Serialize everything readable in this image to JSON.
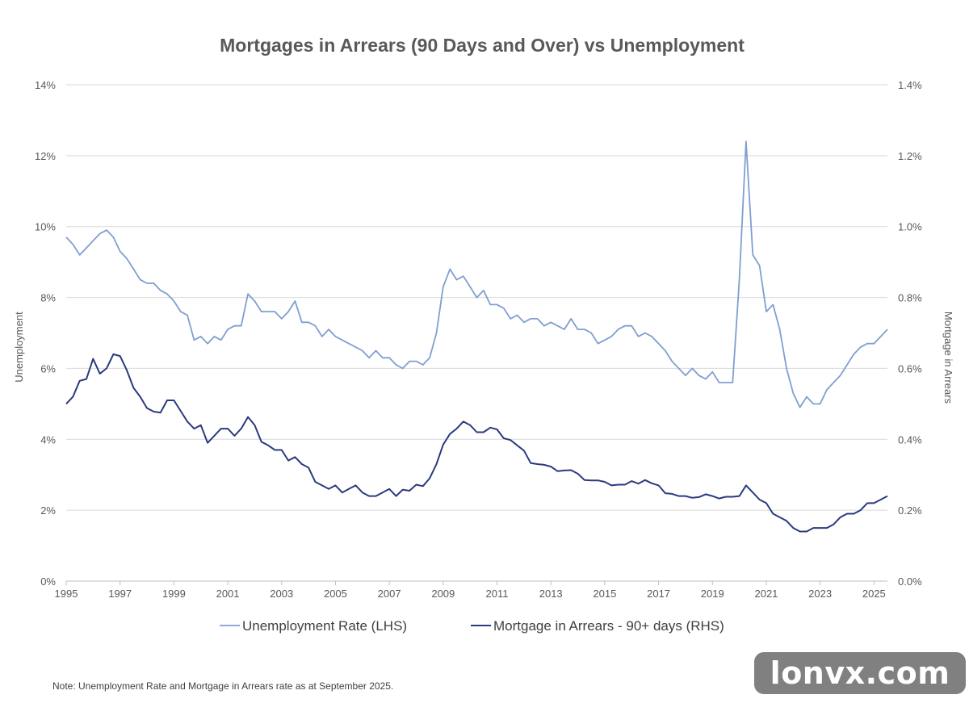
{
  "chart_data": {
    "type": "line",
    "title": "Mortgages in Arrears (90 Days and Over) vs Unemployment",
    "ylabel_left": "Unemployment",
    "ylabel_right": "Mortgage in Arrears",
    "ylim_left": [
      0,
      14
    ],
    "ylim_right": [
      0,
      1.4
    ],
    "xlim": [
      1995,
      2025.5
    ],
    "left_ticks": [
      "0%",
      "2%",
      "4%",
      "6%",
      "8%",
      "10%",
      "12%",
      "14%"
    ],
    "right_ticks": [
      "0.0%",
      "0.2%",
      "0.4%",
      "0.6%",
      "0.8%",
      "1.0%",
      "1.2%",
      "1.4%"
    ],
    "x_ticks": [
      "1995",
      "1997",
      "1999",
      "2001",
      "2003",
      "2005",
      "2007",
      "2009",
      "2011",
      "2013",
      "2015",
      "2017",
      "2019",
      "2021",
      "2023",
      "2025"
    ],
    "grid": true,
    "legend_position": "bottom",
    "series": [
      {
        "name": "Unemployment Rate (LHS)",
        "axis": "left",
        "color": "#7f9fd1",
        "points": [
          [
            1995,
            9.7
          ],
          [
            1995.25,
            9.5
          ],
          [
            1995.5,
            9.2
          ],
          [
            1995.75,
            9.4
          ],
          [
            1996,
            9.6
          ],
          [
            1996.25,
            9.8
          ],
          [
            1996.5,
            9.9
          ],
          [
            1996.75,
            9.7
          ],
          [
            1997,
            9.3
          ],
          [
            1997.25,
            9.1
          ],
          [
            1997.5,
            8.8
          ],
          [
            1997.75,
            8.5
          ],
          [
            1998,
            8.4
          ],
          [
            1998.25,
            8.4
          ],
          [
            1998.5,
            8.2
          ],
          [
            1998.75,
            8.1
          ],
          [
            1999,
            7.9
          ],
          [
            1999.25,
            7.6
          ],
          [
            1999.5,
            7.5
          ],
          [
            1999.75,
            6.8
          ],
          [
            2000,
            6.9
          ],
          [
            2000.25,
            6.7
          ],
          [
            2000.5,
            6.9
          ],
          [
            2000.75,
            6.8
          ],
          [
            2001,
            7.1
          ],
          [
            2001.25,
            7.2
          ],
          [
            2001.5,
            7.2
          ],
          [
            2001.75,
            8.1
          ],
          [
            2002,
            7.9
          ],
          [
            2002.25,
            7.6
          ],
          [
            2002.5,
            7.6
          ],
          [
            2002.75,
            7.6
          ],
          [
            2003,
            7.4
          ],
          [
            2003.25,
            7.6
          ],
          [
            2003.5,
            7.9
          ],
          [
            2003.75,
            7.3
          ],
          [
            2004,
            7.3
          ],
          [
            2004.25,
            7.2
          ],
          [
            2004.5,
            6.9
          ],
          [
            2004.75,
            7.1
          ],
          [
            2005,
            6.9
          ],
          [
            2005.25,
            6.8
          ],
          [
            2005.5,
            6.7
          ],
          [
            2005.75,
            6.6
          ],
          [
            2006,
            6.5
          ],
          [
            2006.25,
            6.3
          ],
          [
            2006.5,
            6.5
          ],
          [
            2006.75,
            6.3
          ],
          [
            2007,
            6.3
          ],
          [
            2007.25,
            6.1
          ],
          [
            2007.5,
            6.0
          ],
          [
            2007.75,
            6.2
          ],
          [
            2008,
            6.2
          ],
          [
            2008.25,
            6.1
          ],
          [
            2008.5,
            6.3
          ],
          [
            2008.75,
            7.0
          ],
          [
            2009,
            8.3
          ],
          [
            2009.25,
            8.8
          ],
          [
            2009.5,
            8.5
          ],
          [
            2009.75,
            8.6
          ],
          [
            2010,
            8.3
          ],
          [
            2010.25,
            8.0
          ],
          [
            2010.5,
            8.2
          ],
          [
            2010.75,
            7.8
          ],
          [
            2011,
            7.8
          ],
          [
            2011.25,
            7.7
          ],
          [
            2011.5,
            7.4
          ],
          [
            2011.75,
            7.5
          ],
          [
            2012,
            7.3
          ],
          [
            2012.25,
            7.4
          ],
          [
            2012.5,
            7.4
          ],
          [
            2012.75,
            7.2
          ],
          [
            2013,
            7.3
          ],
          [
            2013.25,
            7.2
          ],
          [
            2013.5,
            7.1
          ],
          [
            2013.75,
            7.4
          ],
          [
            2014,
            7.1
          ],
          [
            2014.25,
            7.1
          ],
          [
            2014.5,
            7.0
          ],
          [
            2014.75,
            6.7
          ],
          [
            2015,
            6.8
          ],
          [
            2015.25,
            6.9
          ],
          [
            2015.5,
            7.1
          ],
          [
            2015.75,
            7.2
          ],
          [
            2016,
            7.2
          ],
          [
            2016.25,
            6.9
          ],
          [
            2016.5,
            7.0
          ],
          [
            2016.75,
            6.9
          ],
          [
            2017,
            6.7
          ],
          [
            2017.25,
            6.5
          ],
          [
            2017.5,
            6.2
          ],
          [
            2017.75,
            6.0
          ],
          [
            2018,
            5.8
          ],
          [
            2018.25,
            6.0
          ],
          [
            2018.5,
            5.8
          ],
          [
            2018.75,
            5.7
          ],
          [
            2019,
            5.9
          ],
          [
            2019.25,
            5.6
          ],
          [
            2019.5,
            5.6
          ],
          [
            2019.75,
            5.6
          ],
          [
            2020,
            8.5
          ],
          [
            2020.25,
            12.4
          ],
          [
            2020.5,
            9.2
          ],
          [
            2020.75,
            8.9
          ],
          [
            2021,
            7.6
          ],
          [
            2021.25,
            7.8
          ],
          [
            2021.5,
            7.1
          ],
          [
            2021.75,
            6.0
          ],
          [
            2022,
            5.3
          ],
          [
            2022.25,
            4.9
          ],
          [
            2022.5,
            5.2
          ],
          [
            2022.75,
            5.0
          ],
          [
            2023,
            5.0
          ],
          [
            2023.25,
            5.4
          ],
          [
            2023.5,
            5.6
          ],
          [
            2023.75,
            5.8
          ],
          [
            2024,
            6.1
          ],
          [
            2024.25,
            6.4
          ],
          [
            2024.5,
            6.6
          ],
          [
            2024.75,
            6.7
          ],
          [
            2025,
            6.7
          ],
          [
            2025.25,
            6.9
          ],
          [
            2025.5,
            7.1
          ]
        ]
      },
      {
        "name": "Mortgage in Arrears - 90+ days (RHS)",
        "axis": "right",
        "color": "#2b3a7d",
        "points": [
          [
            1995,
            0.5
          ],
          [
            1995.25,
            0.52
          ],
          [
            1995.5,
            0.565
          ],
          [
            1995.75,
            0.57
          ],
          [
            1996,
            0.627
          ],
          [
            1996.25,
            0.585
          ],
          [
            1996.5,
            0.6
          ],
          [
            1996.75,
            0.64
          ],
          [
            1997,
            0.635
          ],
          [
            1997.25,
            0.595
          ],
          [
            1997.5,
            0.545
          ],
          [
            1997.75,
            0.52
          ],
          [
            1998,
            0.488
          ],
          [
            1998.25,
            0.478
          ],
          [
            1998.5,
            0.475
          ],
          [
            1998.75,
            0.51
          ],
          [
            1999,
            0.51
          ],
          [
            1999.25,
            0.48
          ],
          [
            1999.5,
            0.45
          ],
          [
            1999.75,
            0.43
          ],
          [
            2000,
            0.44
          ],
          [
            2000.25,
            0.39
          ],
          [
            2000.5,
            0.41
          ],
          [
            2000.75,
            0.43
          ],
          [
            2001,
            0.43
          ],
          [
            2001.25,
            0.41
          ],
          [
            2001.5,
            0.43
          ],
          [
            2001.75,
            0.463
          ],
          [
            2002,
            0.44
          ],
          [
            2002.25,
            0.393
          ],
          [
            2002.5,
            0.383
          ],
          [
            2002.75,
            0.37
          ],
          [
            2003,
            0.37
          ],
          [
            2003.25,
            0.34
          ],
          [
            2003.5,
            0.35
          ],
          [
            2003.75,
            0.33
          ],
          [
            2004,
            0.32
          ],
          [
            2004.25,
            0.28
          ],
          [
            2004.5,
            0.27
          ],
          [
            2004.75,
            0.26
          ],
          [
            2005,
            0.27
          ],
          [
            2005.25,
            0.25
          ],
          [
            2005.5,
            0.26
          ],
          [
            2005.75,
            0.27
          ],
          [
            2006,
            0.25
          ],
          [
            2006.25,
            0.24
          ],
          [
            2006.5,
            0.24
          ],
          [
            2006.75,
            0.25
          ],
          [
            2007,
            0.26
          ],
          [
            2007.25,
            0.24
          ],
          [
            2007.5,
            0.258
          ],
          [
            2007.75,
            0.255
          ],
          [
            2008,
            0.272
          ],
          [
            2008.25,
            0.268
          ],
          [
            2008.5,
            0.29
          ],
          [
            2008.75,
            0.33
          ],
          [
            2009,
            0.385
          ],
          [
            2009.25,
            0.415
          ],
          [
            2009.5,
            0.43
          ],
          [
            2009.75,
            0.45
          ],
          [
            2010,
            0.44
          ],
          [
            2010.25,
            0.42
          ],
          [
            2010.5,
            0.42
          ],
          [
            2010.75,
            0.433
          ],
          [
            2011,
            0.428
          ],
          [
            2011.25,
            0.403
          ],
          [
            2011.5,
            0.398
          ],
          [
            2011.75,
            0.383
          ],
          [
            2012,
            0.368
          ],
          [
            2012.25,
            0.333
          ],
          [
            2012.5,
            0.33
          ],
          [
            2012.75,
            0.328
          ],
          [
            2013,
            0.323
          ],
          [
            2013.25,
            0.31
          ],
          [
            2013.5,
            0.312
          ],
          [
            2013.75,
            0.313
          ],
          [
            2014,
            0.303
          ],
          [
            2014.25,
            0.285
          ],
          [
            2014.5,
            0.284
          ],
          [
            2014.75,
            0.284
          ],
          [
            2015,
            0.28
          ],
          [
            2015.25,
            0.27
          ],
          [
            2015.5,
            0.272
          ],
          [
            2015.75,
            0.272
          ],
          [
            2016,
            0.282
          ],
          [
            2016.25,
            0.275
          ],
          [
            2016.5,
            0.285
          ],
          [
            2016.75,
            0.276
          ],
          [
            2017,
            0.27
          ],
          [
            2017.25,
            0.248
          ],
          [
            2017.5,
            0.246
          ],
          [
            2017.75,
            0.24
          ],
          [
            2018,
            0.24
          ],
          [
            2018.25,
            0.235
          ],
          [
            2018.5,
            0.237
          ],
          [
            2018.75,
            0.245
          ],
          [
            2019,
            0.24
          ],
          [
            2019.25,
            0.233
          ],
          [
            2019.5,
            0.238
          ],
          [
            2019.75,
            0.238
          ],
          [
            2020,
            0.24
          ],
          [
            2020.25,
            0.27
          ],
          [
            2020.5,
            0.25
          ],
          [
            2020.75,
            0.23
          ],
          [
            2021,
            0.22
          ],
          [
            2021.25,
            0.19
          ],
          [
            2021.5,
            0.18
          ],
          [
            2021.75,
            0.17
          ],
          [
            2022,
            0.15
          ],
          [
            2022.25,
            0.14
          ],
          [
            2022.5,
            0.14
          ],
          [
            2022.75,
            0.15
          ],
          [
            2023,
            0.15
          ],
          [
            2023.25,
            0.15
          ],
          [
            2023.5,
            0.16
          ],
          [
            2023.75,
            0.18
          ],
          [
            2024,
            0.19
          ],
          [
            2024.25,
            0.19
          ],
          [
            2024.5,
            0.2
          ],
          [
            2024.75,
            0.22
          ],
          [
            2025,
            0.22
          ],
          [
            2025.25,
            0.23
          ],
          [
            2025.5,
            0.24
          ]
        ]
      }
    ]
  },
  "note": "Note: Unemployment Rate and Mortgage  in Arrears rate as at September 2025.",
  "watermark": "lonvx.com"
}
